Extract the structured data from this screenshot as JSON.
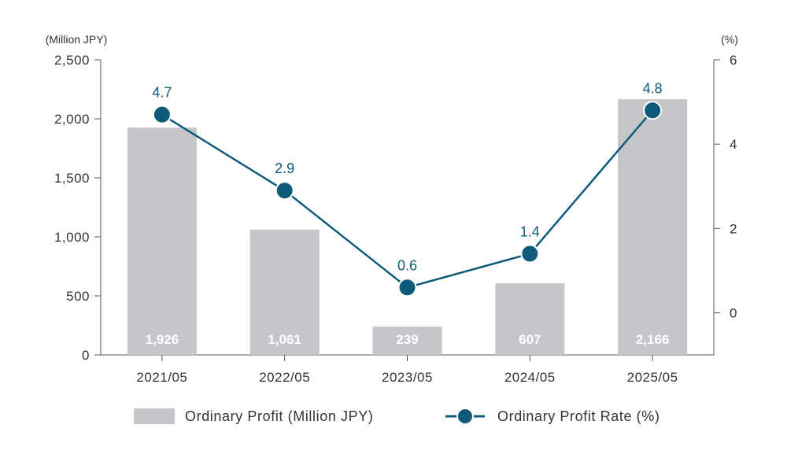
{
  "chart_data": {
    "type": "bar",
    "categories": [
      "2021/05",
      "2022/05",
      "2023/05",
      "2024/05",
      "2025/05"
    ],
    "series": [
      {
        "name": "Ordinary Profit (Million JPY)",
        "type": "bar",
        "axis": "left",
        "values": [
          1926,
          1061,
          239,
          607,
          2166
        ],
        "labels": [
          "1,926",
          "1,061",
          "239",
          "607",
          "2,166"
        ]
      },
      {
        "name": "Ordinary Profit Rate (%)",
        "type": "line",
        "axis": "right",
        "values": [
          4.7,
          2.9,
          0.6,
          1.4,
          4.8
        ],
        "labels": [
          "4.7",
          "2.9",
          "0.6",
          "1.4",
          "4.8"
        ]
      }
    ],
    "left_axis": {
      "unit": "(Million JPY)",
      "ylim": [
        0,
        2500
      ],
      "ticks": [
        0,
        500,
        1000,
        1500,
        2000,
        2500
      ],
      "tick_labels": [
        "0",
        "500",
        "1,000",
        "1,500",
        "2,000",
        "2,500"
      ]
    },
    "right_axis": {
      "unit": "(%)",
      "ylim": [
        -1,
        6
      ],
      "ticks": [
        0,
        2,
        4,
        6
      ],
      "tick_labels": [
        "0",
        "2",
        "4",
        "6"
      ]
    },
    "grid": false,
    "legend_position": "bottom-center",
    "colors": {
      "bar": "#c4c6ca",
      "line": "#0e5a7a",
      "axis": "#555555"
    }
  }
}
